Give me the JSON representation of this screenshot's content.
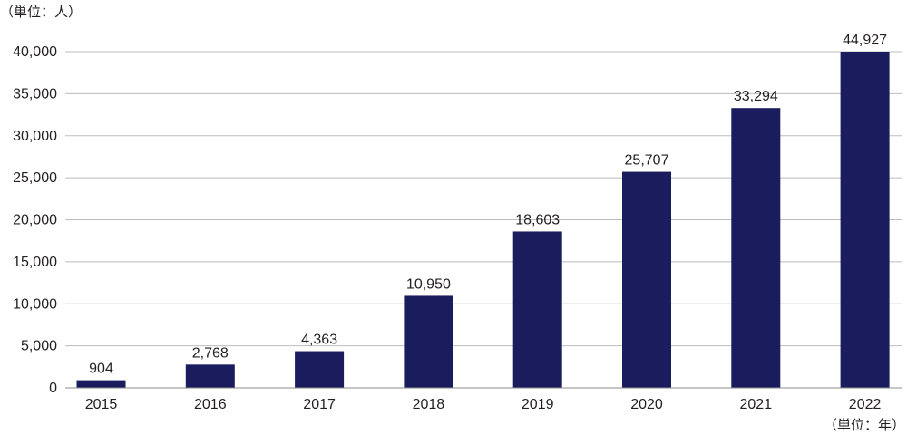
{
  "chart_data": {
    "type": "bar",
    "y_unit_label": "（単位：人）",
    "x_unit_label": "（単位：年）",
    "categories": [
      "2015",
      "2016",
      "2017",
      "2018",
      "2019",
      "2020",
      "2021",
      "2022"
    ],
    "values": [
      904,
      2768,
      4363,
      10950,
      18603,
      25707,
      33294,
      44927
    ],
    "value_labels": [
      "904",
      "2,768",
      "4,363",
      "10,950",
      "18,603",
      "25,707",
      "33,294",
      "44,927"
    ],
    "ylim": [
      0,
      40000
    ],
    "yticks": [
      0,
      5000,
      10000,
      15000,
      20000,
      25000,
      30000,
      35000,
      40000
    ],
    "ytick_labels": [
      "0",
      "5,000",
      "10,000",
      "15,000",
      "20,000",
      "25,000",
      "30,000",
      "35,000",
      "40,000"
    ],
    "grid": true,
    "bar_color": "#1b1c5e"
  }
}
